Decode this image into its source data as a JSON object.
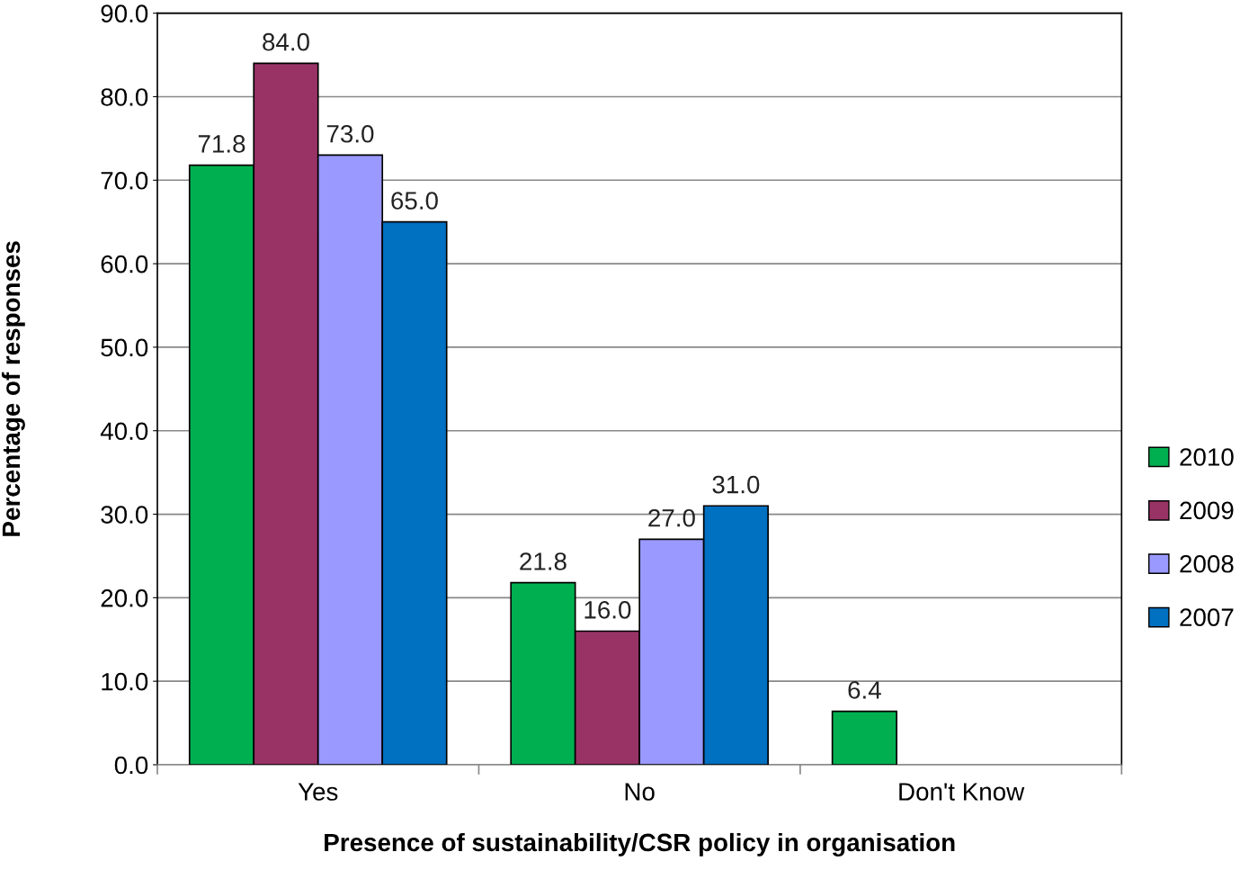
{
  "chart_data": {
    "type": "bar",
    "xlabel": "Presence of sustainability/CSR policy in organisation",
    "ylabel": "Percentage of responses",
    "categories": [
      "Yes",
      "No",
      "Don't Know"
    ],
    "series": [
      {
        "name": "2010",
        "color": "#00b050",
        "values": [
          71.8,
          21.8,
          6.4
        ],
        "value_labels": [
          "71.8",
          "21.8",
          "6.4"
        ]
      },
      {
        "name": "2009",
        "color": "#993366",
        "values": [
          84.0,
          16.0,
          null
        ],
        "value_labels": [
          "84.0",
          "16.0",
          null
        ]
      },
      {
        "name": "2008",
        "color": "#9999ff",
        "values": [
          73.0,
          27.0,
          null
        ],
        "value_labels": [
          "73.0",
          "27.0",
          null
        ]
      },
      {
        "name": "2007",
        "color": "#0070c0",
        "values": [
          65.0,
          31.0,
          null
        ],
        "value_labels": [
          "65.0",
          "31.0",
          null
        ]
      }
    ],
    "ylim": [
      0,
      90
    ],
    "yticks": [
      {
        "value": 0,
        "label": "0.0"
      },
      {
        "value": 10,
        "label": "10.0"
      },
      {
        "value": 20,
        "label": "20.0"
      },
      {
        "value": 30,
        "label": "30.0"
      },
      {
        "value": 40,
        "label": "40.0"
      },
      {
        "value": 50,
        "label": "50.0"
      },
      {
        "value": 60,
        "label": "60.0"
      },
      {
        "value": 70,
        "label": "70.0"
      },
      {
        "value": 80,
        "label": "80.0"
      },
      {
        "value": 90,
        "label": "90.0"
      }
    ],
    "grid": "y",
    "legend": "right"
  }
}
